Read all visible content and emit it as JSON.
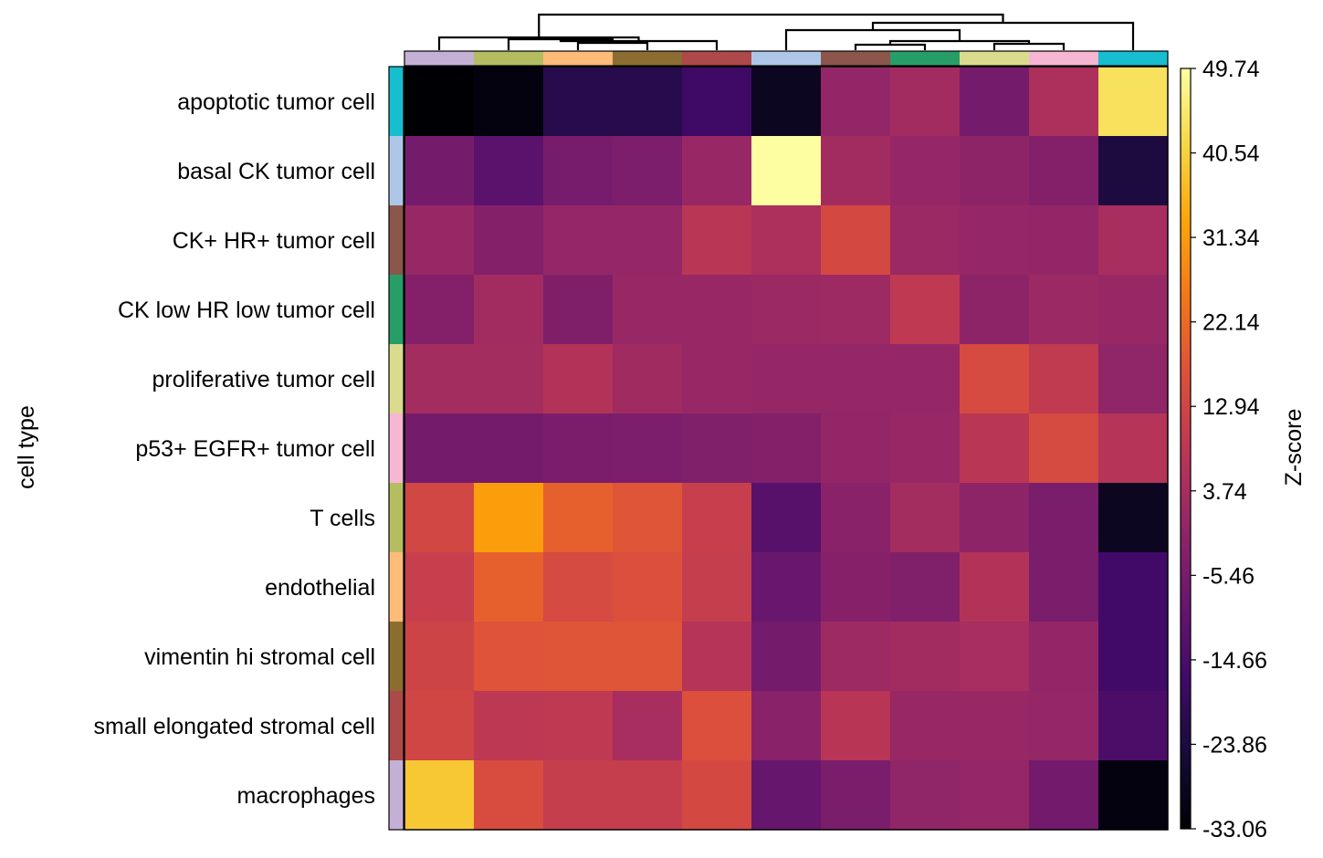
{
  "chart_data": {
    "type": "heatmap",
    "ylabel": "cell type",
    "colorbar_label": "Z-score",
    "colormap": "inferno",
    "vmin": -33.06,
    "vmax": 49.74,
    "colorbar_ticks": [
      "49.74",
      "40.54",
      "31.34",
      "22.14",
      "12.94",
      "3.74",
      "-5.46",
      "-14.66",
      "-23.86",
      "-33.06"
    ],
    "colorbar_tick_values": [
      49.74,
      40.54,
      31.34,
      22.14,
      12.94,
      3.74,
      -5.46,
      -14.66,
      -23.86,
      -33.06
    ],
    "rows": [
      {
        "label": "apoptotic tumor cell",
        "color": "#17becf"
      },
      {
        "label": "basal CK tumor cell",
        "color": "#aec7e8"
      },
      {
        "label": "CK+ HR+ tumor cell",
        "color": "#8c564b"
      },
      {
        "label": "CK low HR low tumor cell",
        "color": "#279e68"
      },
      {
        "label": "proliferative tumor cell",
        "color": "#dbdb8d"
      },
      {
        "label": "p53+ EGFR+ tumor cell",
        "color": "#f7b6d2"
      },
      {
        "label": "T cells",
        "color": "#b5bd61"
      },
      {
        "label": "endothelial",
        "color": "#ffbb78"
      },
      {
        "label": "vimentin hi stromal cell",
        "color": "#8c6d31"
      },
      {
        "label": "small elongated stromal cell",
        "color": "#ad494a"
      },
      {
        "label": "macrophages",
        "color": "#c5b0d5"
      }
    ],
    "column_colors": [
      "#c5b0d5",
      "#b5bd61",
      "#ffbb78",
      "#8c6d31",
      "#ad494a",
      "#aec7e8",
      "#8c564b",
      "#279e68",
      "#dbdb8d",
      "#f7b6d2",
      "#17becf"
    ],
    "values": [
      [
        -33.0,
        -31.5,
        -21.5,
        -21.5,
        -17.0,
        -28.5,
        0.0,
        3.0,
        -6.0,
        5.0,
        43.5
      ],
      [
        -6.0,
        -11.5,
        -5.5,
        -4.5,
        1.0,
        49.5,
        3.0,
        0.5,
        -1.0,
        -3.0,
        -23.5
      ],
      [
        1.0,
        -3.0,
        0.5,
        0.5,
        8.0,
        5.0,
        14.0,
        1.5,
        0.5,
        0.0,
        4.0
      ],
      [
        -3.0,
        3.0,
        -4.0,
        1.0,
        1.0,
        1.5,
        2.0,
        9.0,
        -1.0,
        1.5,
        1.0
      ],
      [
        3.5,
        3.5,
        6.5,
        2.5,
        1.0,
        0.5,
        0.5,
        0.5,
        14.5,
        9.5,
        -0.5
      ],
      [
        -6.0,
        -6.0,
        -5.0,
        -4.5,
        -3.5,
        -3.0,
        0.0,
        1.0,
        8.0,
        14.5,
        7.0
      ],
      [
        13.5,
        32.0,
        20.0,
        17.5,
        11.0,
        -12.0,
        -2.0,
        3.5,
        -1.0,
        -5.0,
        -28.5
      ],
      [
        11.0,
        20.0,
        14.5,
        16.0,
        10.5,
        -8.5,
        -2.5,
        -3.5,
        6.5,
        -5.0,
        -16.5
      ],
      [
        12.5,
        17.0,
        17.5,
        17.5,
        7.0,
        -6.0,
        2.0,
        3.0,
        4.0,
        0.0,
        -16.5
      ],
      [
        13.0,
        8.5,
        9.0,
        4.0,
        16.0,
        -2.0,
        7.5,
        1.0,
        1.0,
        0.5,
        -14.5
      ],
      [
        39.0,
        15.0,
        10.5,
        10.5,
        14.0,
        -9.0,
        -5.0,
        -0.5,
        0.5,
        -6.5,
        -31.5
      ]
    ]
  }
}
